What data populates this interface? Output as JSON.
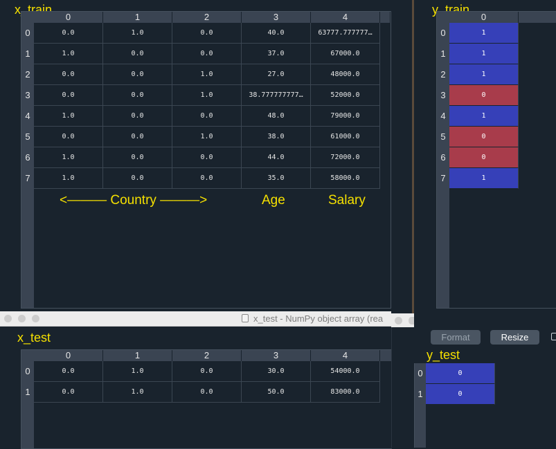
{
  "x_train": {
    "label": "x_train",
    "columns": [
      "0",
      "1",
      "2",
      "3",
      "4"
    ],
    "row_headers": [
      "0",
      "1",
      "2",
      "3",
      "4",
      "5",
      "6",
      "7"
    ],
    "rows": [
      [
        "0.0",
        "1.0",
        "0.0",
        "40.0",
        "63777.777777…"
      ],
      [
        "1.0",
        "0.0",
        "0.0",
        "37.0",
        "67000.0"
      ],
      [
        "0.0",
        "0.0",
        "1.0",
        "27.0",
        "48000.0"
      ],
      [
        "0.0",
        "0.0",
        "1.0",
        "38.777777777…",
        "52000.0"
      ],
      [
        "1.0",
        "0.0",
        "0.0",
        "48.0",
        "79000.0"
      ],
      [
        "0.0",
        "0.0",
        "1.0",
        "38.0",
        "61000.0"
      ],
      [
        "1.0",
        "0.0",
        "0.0",
        "44.0",
        "72000.0"
      ],
      [
        "1.0",
        "0.0",
        "0.0",
        "35.0",
        "58000.0"
      ]
    ],
    "annotations": {
      "country": "<——— Country ———>",
      "age": "Age",
      "salary": "Salary"
    }
  },
  "y_train": {
    "label": "y_train",
    "columns": [
      "0"
    ],
    "row_headers": [
      "0",
      "1",
      "2",
      "3",
      "4",
      "5",
      "6",
      "7"
    ],
    "values": [
      "1",
      "1",
      "1",
      "0",
      "1",
      "0",
      "0",
      "1"
    ],
    "buttons": {
      "format": "Format",
      "resize": "Resize"
    }
  },
  "x_test_window": {
    "title": "x_test - NumPy object array (rea"
  },
  "x_test": {
    "label": "x_test",
    "columns": [
      "0",
      "1",
      "2",
      "3",
      "4"
    ],
    "row_headers": [
      "0",
      "1"
    ],
    "rows": [
      [
        "0.0",
        "1.0",
        "0.0",
        "30.0",
        "54000.0"
      ],
      [
        "0.0",
        "1.0",
        "0.0",
        "50.0",
        "83000.0"
      ]
    ]
  },
  "y_test": {
    "label": "y_test",
    "row_headers": [
      "0",
      "1"
    ],
    "values": [
      "0",
      "0"
    ]
  },
  "colors": {
    "value_one": "#3640b8",
    "value_zero": "#a83c4b",
    "annotation": "#f5e000",
    "background": "#19232d"
  }
}
